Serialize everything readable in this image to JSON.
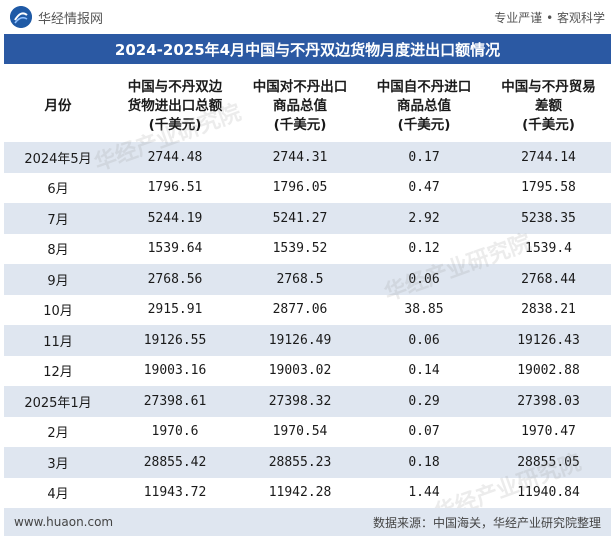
{
  "header": {
    "brand_name": "华经情报网",
    "tagline": "专业严谨 • 客观科学"
  },
  "title": "2024-2025年4月中国与不丹双边货物月度进出口额情况",
  "table": {
    "columns": [
      {
        "line1": "月份",
        "line2": "",
        "line3": ""
      },
      {
        "line1": "中国与不丹双边",
        "line2": "货物进出口总额",
        "line3": "(千美元)"
      },
      {
        "line1": "中国对不丹出口",
        "line2": "商品总值",
        "line3": "(千美元)"
      },
      {
        "line1": "中国自不丹进口",
        "line2": "商品总值",
        "line3": "(千美元)"
      },
      {
        "line1": "中国与不丹贸易",
        "line2": "差额",
        "line3": "(千美元)"
      }
    ],
    "rows": [
      {
        "month": "2024年5月",
        "total": "2744.48",
        "export": "2744.31",
        "import": "0.17",
        "balance": "2744.14"
      },
      {
        "month": "6月",
        "total": "1796.51",
        "export": "1796.05",
        "import": "0.47",
        "balance": "1795.58"
      },
      {
        "month": "7月",
        "total": "5244.19",
        "export": "5241.27",
        "import": "2.92",
        "balance": "5238.35"
      },
      {
        "month": "8月",
        "total": "1539.64",
        "export": "1539.52",
        "import": "0.12",
        "balance": "1539.4"
      },
      {
        "month": "9月",
        "total": "2768.56",
        "export": "2768.5",
        "import": "0.06",
        "balance": "2768.44"
      },
      {
        "month": "10月",
        "total": "2915.91",
        "export": "2877.06",
        "import": "38.85",
        "balance": "2838.21"
      },
      {
        "month": "11月",
        "total": "19126.55",
        "export": "19126.49",
        "import": "0.06",
        "balance": "19126.43"
      },
      {
        "month": "12月",
        "total": "19003.16",
        "export": "19003.02",
        "import": "0.14",
        "balance": "19002.88"
      },
      {
        "month": "2025年1月",
        "total": "27398.61",
        "export": "27398.32",
        "import": "0.29",
        "balance": "27398.03"
      },
      {
        "month": "2月",
        "total": "1970.6",
        "export": "1970.54",
        "import": "0.07",
        "balance": "1970.47"
      },
      {
        "month": "3月",
        "total": "28855.42",
        "export": "28855.23",
        "import": "0.18",
        "balance": "28855.05"
      },
      {
        "month": "4月",
        "total": "11943.72",
        "export": "11942.28",
        "import": "1.44",
        "balance": "11940.84"
      }
    ]
  },
  "footer": {
    "website": "www.huaon.com",
    "source": "数据来源：中国海关，华经产业研究院整理"
  },
  "watermark": "华经产业研究院",
  "colors": {
    "title_bg": "#2b59a3",
    "stripe": "#dfe6f0",
    "logo": "#1f5aa6"
  }
}
